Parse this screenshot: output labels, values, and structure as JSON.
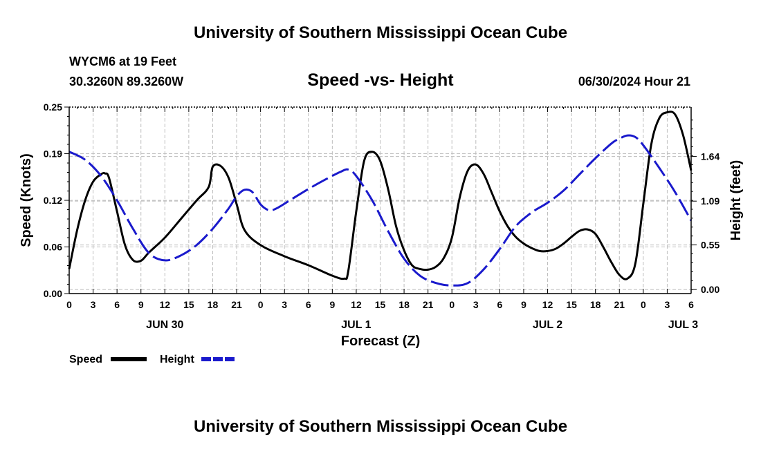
{
  "page": {
    "title": "University of Southern Mississippi Ocean Cube",
    "footer_title": "University of Southern Mississippi Ocean Cube",
    "station": "WYCM6 at 19 Feet",
    "coords": "30.3260N  89.3260W",
    "subtitle": "Speed -vs- Height",
    "date": "06/30/2024 Hour 21"
  },
  "chart_data": {
    "type": "line",
    "title": "Speed -vs- Height",
    "xlabel": "Forecast (Z)",
    "ylabel_left": "Speed (Knots)",
    "ylabel_right": "Height (feet)",
    "x_range_hours": [
      0,
      78
    ],
    "ylim_left": [
      0,
      0.25
    ],
    "ylim_right": [
      -0.05,
      2.25
    ],
    "x_ticks": [
      {
        "h": 0,
        "label": "0"
      },
      {
        "h": 3,
        "label": "3"
      },
      {
        "h": 6,
        "label": "6"
      },
      {
        "h": 9,
        "label": "9"
      },
      {
        "h": 12,
        "label": "12"
      },
      {
        "h": 15,
        "label": "15"
      },
      {
        "h": 18,
        "label": "18"
      },
      {
        "h": 21,
        "label": "21"
      },
      {
        "h": 24,
        "label": "0"
      },
      {
        "h": 27,
        "label": "3"
      },
      {
        "h": 30,
        "label": "6"
      },
      {
        "h": 33,
        "label": "9"
      },
      {
        "h": 36,
        "label": "12"
      },
      {
        "h": 39,
        "label": "15"
      },
      {
        "h": 42,
        "label": "18"
      },
      {
        "h": 45,
        "label": "21"
      },
      {
        "h": 48,
        "label": "0"
      },
      {
        "h": 51,
        "label": "3"
      },
      {
        "h": 54,
        "label": "6"
      },
      {
        "h": 57,
        "label": "9"
      },
      {
        "h": 60,
        "label": "12"
      },
      {
        "h": 63,
        "label": "15"
      },
      {
        "h": 66,
        "label": "18"
      },
      {
        "h": 69,
        "label": "21"
      },
      {
        "h": 72,
        "label": "0"
      },
      {
        "h": 75,
        "label": "3"
      },
      {
        "h": 78,
        "label": "6"
      }
    ],
    "date_labels": [
      {
        "h": 12,
        "label": "JUN 30"
      },
      {
        "h": 36,
        "label": "JUL 1"
      },
      {
        "h": 60,
        "label": "JUL 2"
      },
      {
        "h": 77,
        "label": "JUL 3"
      }
    ],
    "y_ticks_left": [
      {
        "v": 0,
        "label": "0.00"
      },
      {
        "v": 0.0625,
        "label": "0.06"
      },
      {
        "v": 0.125,
        "label": "0.12"
      },
      {
        "v": 0.1875,
        "label": "0.19"
      },
      {
        "v": 0.25,
        "label": "0.25"
      }
    ],
    "y_ticks_right": [
      {
        "v": 0.0,
        "label": "0.00"
      },
      {
        "v": 0.55,
        "label": "0.55"
      },
      {
        "v": 1.09,
        "label": "1.09"
      },
      {
        "v": 1.64,
        "label": "1.64"
      }
    ],
    "series": [
      {
        "name": "Speed",
        "axis": "left",
        "color": "#000000",
        "dash": false,
        "x": [
          0,
          1,
          2,
          3,
          4,
          4.5,
          5,
          6,
          7,
          8,
          9,
          10,
          12,
          14,
          16,
          17.5,
          18,
          19,
          20,
          21,
          22,
          24,
          27,
          30,
          33,
          34.5,
          35,
          36,
          37,
          38,
          39,
          40,
          41,
          42,
          43,
          44,
          45,
          46,
          47,
          48,
          49,
          50,
          51,
          52,
          53,
          54,
          55,
          56,
          57,
          58,
          59,
          60,
          61,
          62,
          63,
          64,
          65,
          66,
          67,
          68,
          69,
          70,
          71,
          72,
          73,
          74,
          75,
          76,
          77,
          78
        ],
        "y": [
          0.033,
          0.085,
          0.125,
          0.15,
          0.16,
          0.161,
          0.155,
          0.11,
          0.065,
          0.045,
          0.044,
          0.055,
          0.075,
          0.1,
          0.125,
          0.143,
          0.17,
          0.171,
          0.155,
          0.12,
          0.085,
          0.065,
          0.05,
          0.038,
          0.024,
          0.02,
          0.03,
          0.11,
          0.178,
          0.19,
          0.178,
          0.14,
          0.09,
          0.058,
          0.038,
          0.033,
          0.032,
          0.036,
          0.048,
          0.075,
          0.13,
          0.165,
          0.173,
          0.16,
          0.135,
          0.11,
          0.09,
          0.076,
          0.067,
          0.061,
          0.057,
          0.057,
          0.06,
          0.067,
          0.076,
          0.084,
          0.086,
          0.08,
          0.062,
          0.042,
          0.025,
          0.02,
          0.04,
          0.12,
          0.2,
          0.235,
          0.243,
          0.24,
          0.212,
          0.165
        ]
      },
      {
        "name": "Height",
        "axis": "right",
        "color": "#1a1acc",
        "dash": true,
        "x": [
          0,
          2,
          4,
          6,
          8,
          10,
          12,
          14,
          16,
          18,
          20,
          21,
          22,
          23,
          24,
          25,
          26,
          28,
          30,
          32,
          34,
          35,
          36,
          38,
          40,
          42,
          44,
          46,
          48,
          50,
          52,
          54,
          56,
          58,
          60,
          62,
          64,
          66,
          68,
          69,
          70,
          71,
          72,
          74,
          76,
          78
        ],
        "y": [
          1.7,
          1.6,
          1.4,
          1.1,
          0.75,
          0.45,
          0.36,
          0.42,
          0.55,
          0.75,
          1.0,
          1.15,
          1.23,
          1.2,
          1.05,
          0.98,
          1.0,
          1.12,
          1.24,
          1.35,
          1.45,
          1.48,
          1.4,
          1.1,
          0.72,
          0.38,
          0.17,
          0.08,
          0.05,
          0.08,
          0.25,
          0.5,
          0.78,
          0.95,
          1.07,
          1.22,
          1.42,
          1.62,
          1.8,
          1.86,
          1.9,
          1.88,
          1.78,
          1.5,
          1.2,
          0.85
        ]
      }
    ],
    "legend": [
      {
        "label": "Speed",
        "color": "#000000",
        "dash": false
      },
      {
        "label": "Height",
        "color": "#1a1acc",
        "dash": true
      }
    ],
    "grid": true
  }
}
